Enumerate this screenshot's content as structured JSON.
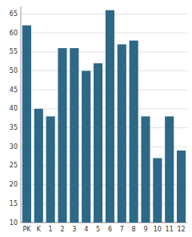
{
  "chart_data": {
    "type": "bar",
    "categories": [
      "PK",
      "K",
      "1",
      "2",
      "3",
      "4",
      "5",
      "6",
      "7",
      "8",
      "9",
      "10",
      "11",
      "12"
    ],
    "values": [
      62,
      40,
      38,
      56,
      56,
      50,
      52,
      66,
      57,
      58,
      38,
      27,
      38,
      29
    ],
    "color": "#2e6887",
    "ylim": [
      10,
      67
    ],
    "yticks": [
      10,
      15,
      20,
      25,
      30,
      35,
      40,
      45,
      50,
      55,
      60,
      65
    ],
    "grid": true
  }
}
